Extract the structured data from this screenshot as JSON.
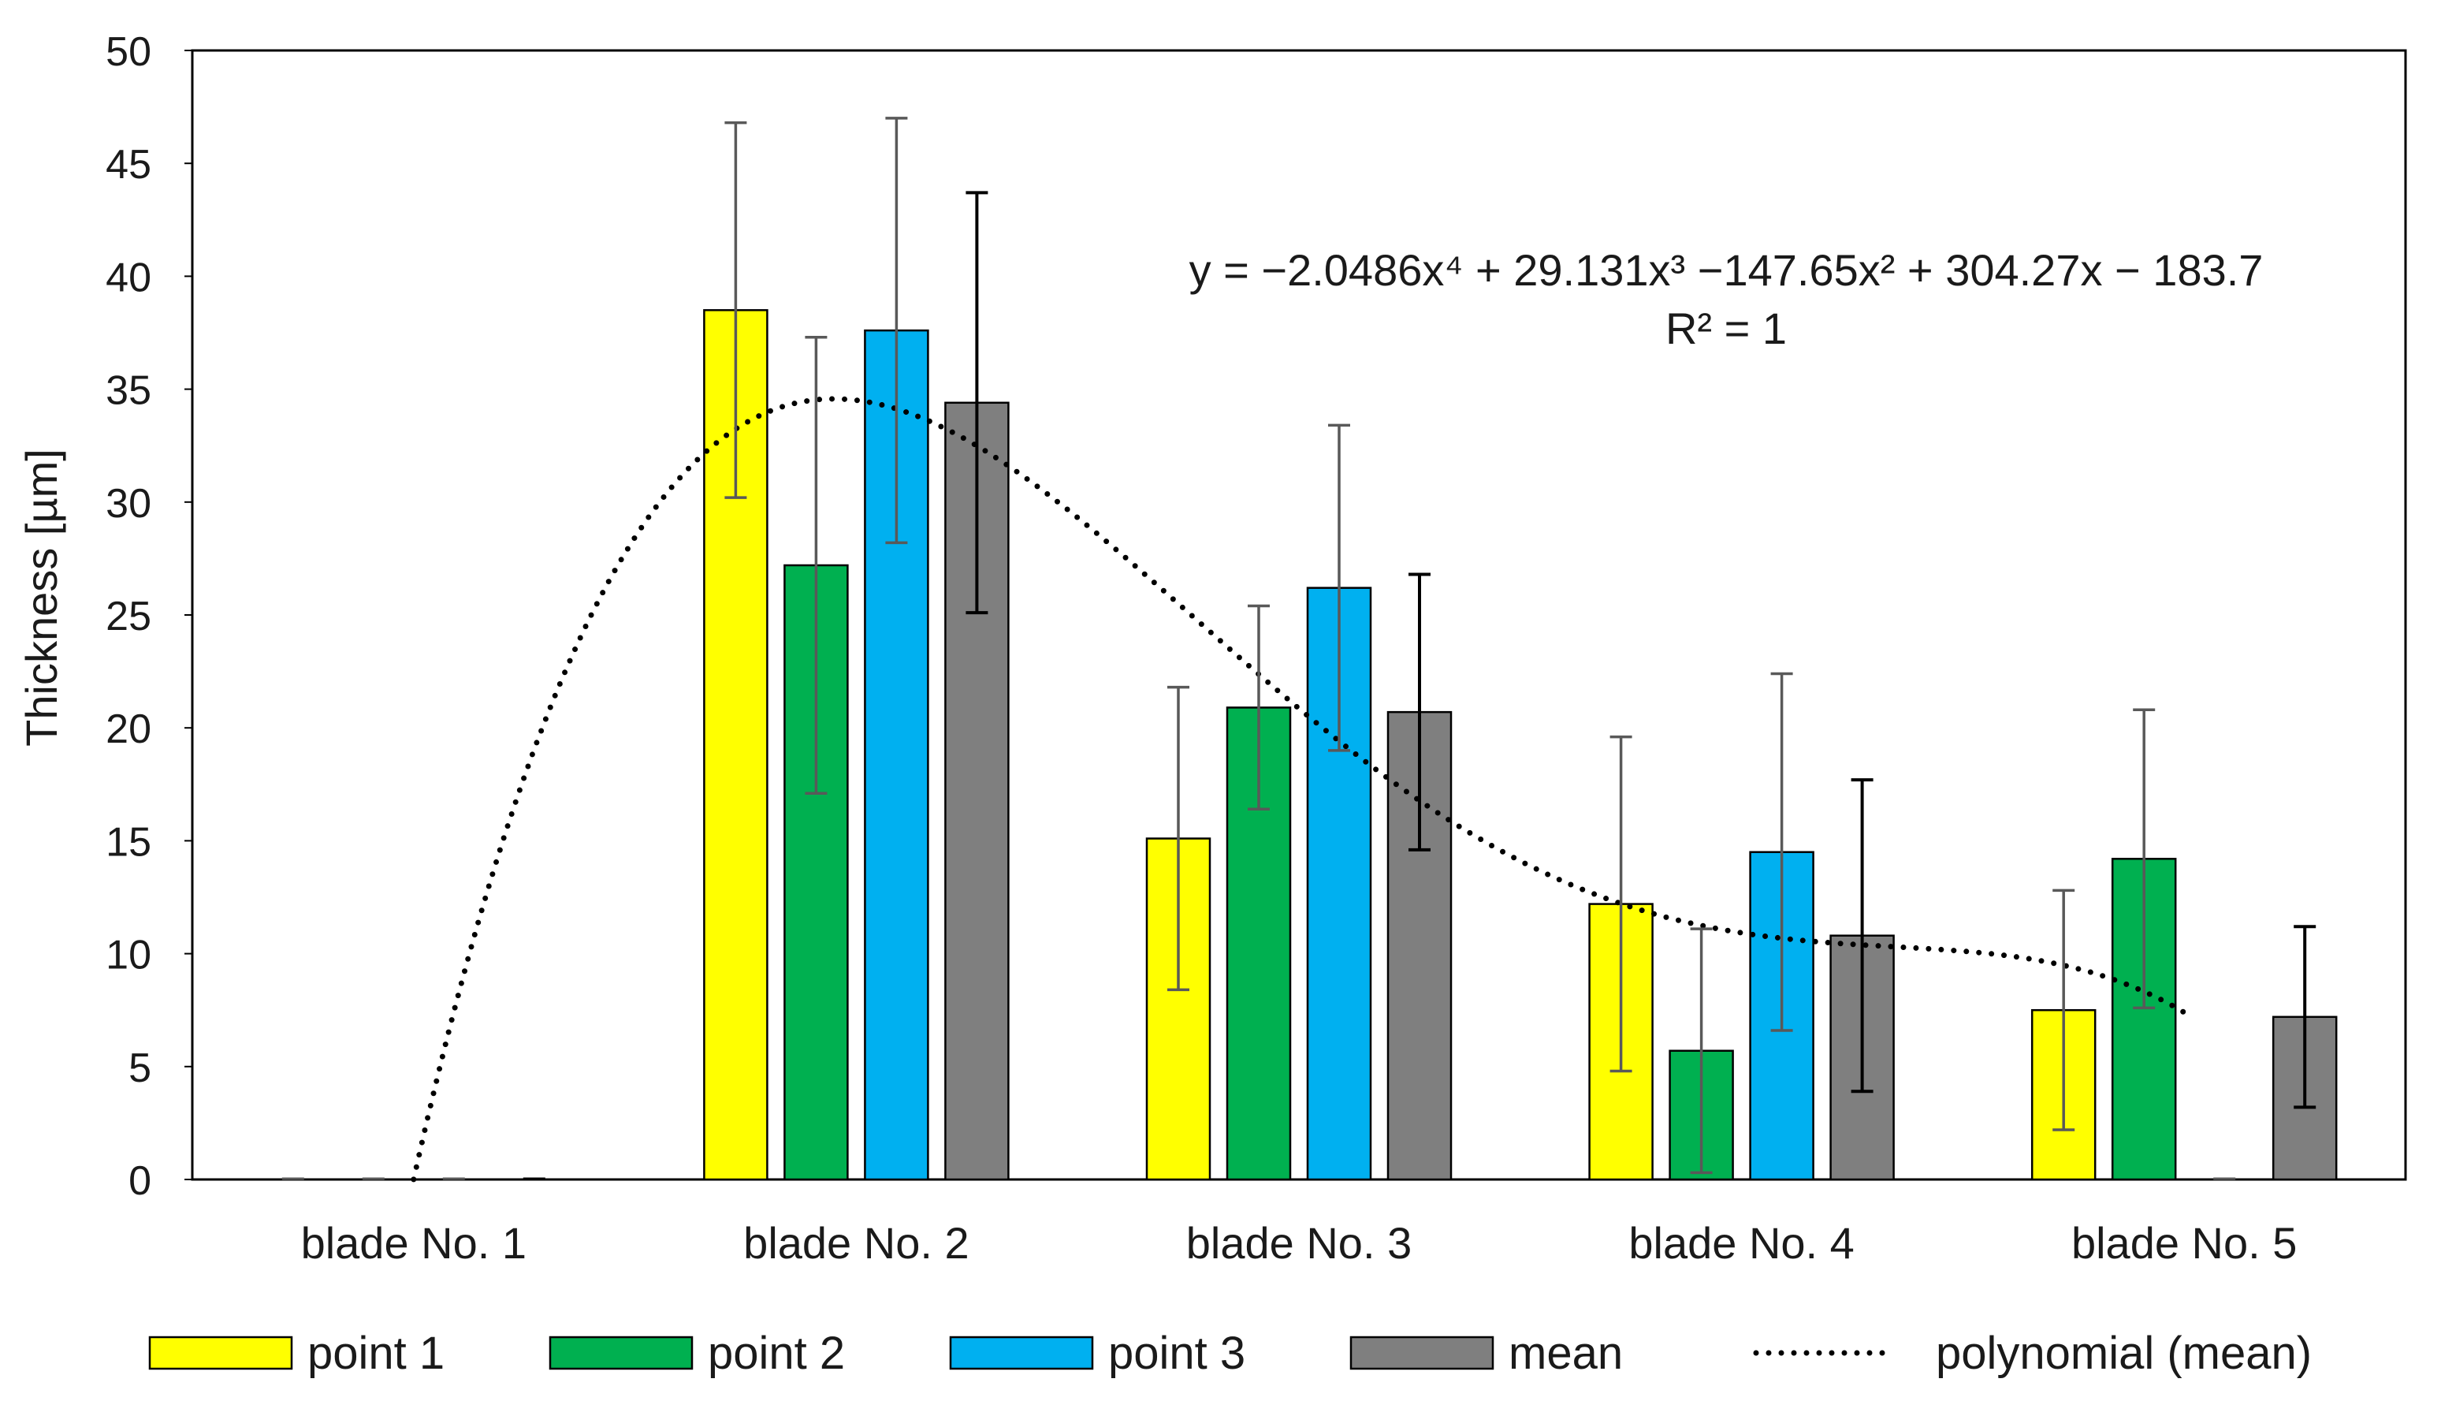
{
  "chart_data": {
    "type": "bar",
    "title": "",
    "xlabel": "",
    "ylabel": "Thickness [µm]",
    "ylim": [
      0,
      50
    ],
    "yticks": [
      0,
      5,
      10,
      15,
      20,
      25,
      30,
      35,
      40,
      45,
      50
    ],
    "categories": [
      "blade No. 1",
      "blade No. 2",
      "blade No. 3",
      "blade No. 4",
      "blade No. 5"
    ],
    "series": [
      {
        "name": "point 1",
        "color": "#ffff00",
        "values": [
          0,
          38.5,
          15.1,
          12.2,
          7.5
        ],
        "errors": [
          0,
          8.3,
          6.7,
          7.4,
          5.3
        ],
        "error_color": "#595959"
      },
      {
        "name": "point 2",
        "color": "#00b050",
        "values": [
          0,
          27.2,
          20.9,
          5.7,
          14.2
        ],
        "errors": [
          0,
          10.1,
          4.5,
          5.4,
          6.6
        ],
        "error_color": "#595959"
      },
      {
        "name": "point 3",
        "color": "#00b0f0",
        "values": [
          0,
          37.6,
          26.2,
          14.5,
          0
        ],
        "errors": [
          0,
          9.4,
          7.2,
          7.9,
          0
        ],
        "error_color": "#595959"
      },
      {
        "name": "mean",
        "color": "#7f7f7f",
        "values": [
          0,
          34.4,
          20.7,
          10.8,
          7.2
        ],
        "errors": [
          0,
          9.3,
          6.1,
          6.9,
          4.0
        ],
        "error_color": "#000000"
      }
    ],
    "trendline": {
      "name": "polynomial (mean)",
      "of_series": "mean",
      "coefficients": [
        -183.7,
        304.27,
        -147.65,
        29.131,
        -2.0486
      ],
      "x_range": [
        1,
        5
      ],
      "color": "#000000",
      "equation_text": "y = −2.0486x⁴ + 29.131x³ −147.65x² + 304.27x − 183.7",
      "r2_text": "R² = 1"
    },
    "legend": {
      "position": "bottom",
      "items": [
        "point 1",
        "point 2",
        "point 3",
        "mean",
        "polynomial (mean)"
      ]
    }
  }
}
